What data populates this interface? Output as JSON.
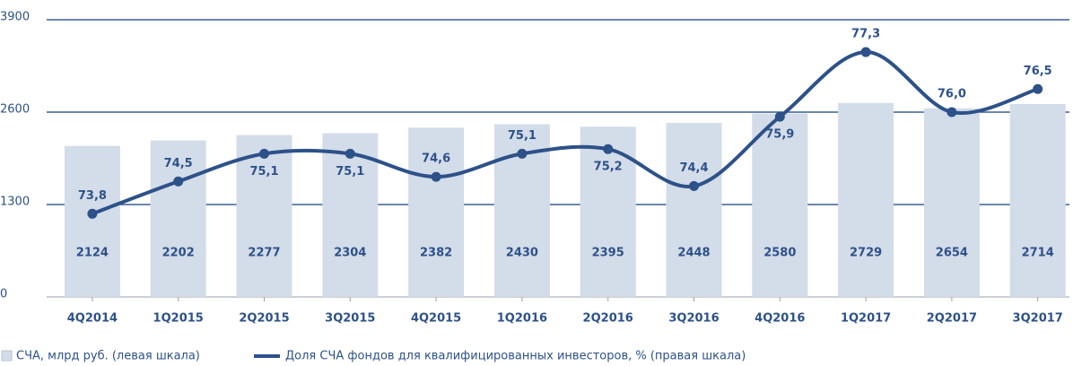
{
  "chart_data": {
    "type": "bar-line",
    "categories": [
      "4Q2014",
      "1Q2015",
      "2Q2015",
      "3Q2015",
      "4Q2015",
      "1Q2016",
      "2Q2016",
      "3Q2016",
      "4Q2016",
      "1Q2017",
      "2Q2017",
      "3Q2017"
    ],
    "series": [
      {
        "name": "СЧА, млрд руб. (левая шкала)",
        "type": "bar",
        "color": "#d3dce9",
        "values": [
          2124,
          2202,
          2277,
          2304,
          2382,
          2430,
          2395,
          2448,
          2580,
          2729,
          2654,
          2714
        ]
      },
      {
        "name": "Доля СЧА фондов для квалифицированных инвесторов, % (правая шкала)",
        "type": "line",
        "axis": "y2",
        "color": "#2d5189",
        "values": [
          73.8,
          74.5,
          75.1,
          75.1,
          74.6,
          75.1,
          75.2,
          74.4,
          75.9,
          77.3,
          76.0,
          76.5
        ],
        "value_labels": [
          "73,8",
          "74,5",
          "75,1",
          "75,1",
          "74,6",
          "75,1",
          "75,2",
          "74,4",
          "75,9",
          "77,3",
          "76,0",
          "76,5"
        ]
      }
    ],
    "ylim": [
      0,
      3900
    ],
    "yticks": [
      0,
      1300,
      2600,
      3900
    ],
    "y2lim": [
      72,
      78
    ],
    "grid": true,
    "legend": "bottom"
  }
}
